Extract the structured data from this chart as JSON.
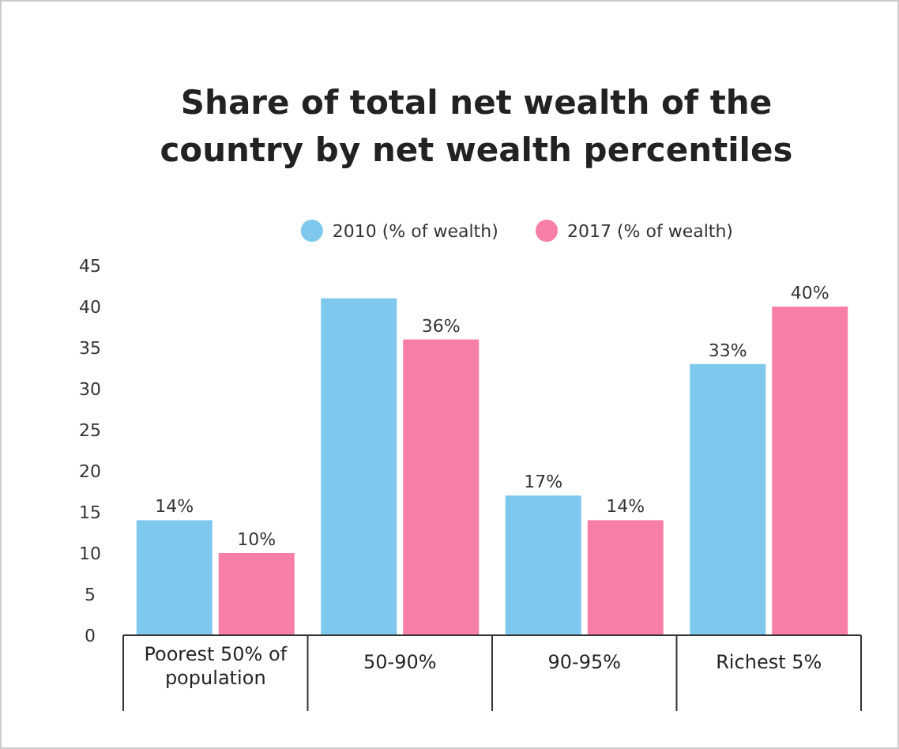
{
  "chart_data": {
    "type": "bar",
    "title": "Share of total net wealth of the country by net wealth percentiles",
    "categories": [
      "Poorest 50% of population",
      "50-90%",
      "90-95%",
      "Richest 5%"
    ],
    "series": [
      {
        "name": "2010 (% of wealth)",
        "color": "#7ec8ee",
        "values": [
          14,
          41,
          17,
          33
        ],
        "value_labels": [
          "14%",
          null,
          "17%",
          "33%"
        ]
      },
      {
        "name": "2017 (% of wealth)",
        "color": "#f77fa6",
        "values": [
          10,
          36,
          14,
          40
        ],
        "value_labels": [
          "10%",
          "36%",
          "14%",
          "40%"
        ]
      }
    ],
    "ylim": [
      0,
      45
    ],
    "yticks": [
      0,
      5,
      10,
      15,
      20,
      25,
      30,
      35,
      40,
      45
    ],
    "legend": "top",
    "grid": false
  }
}
